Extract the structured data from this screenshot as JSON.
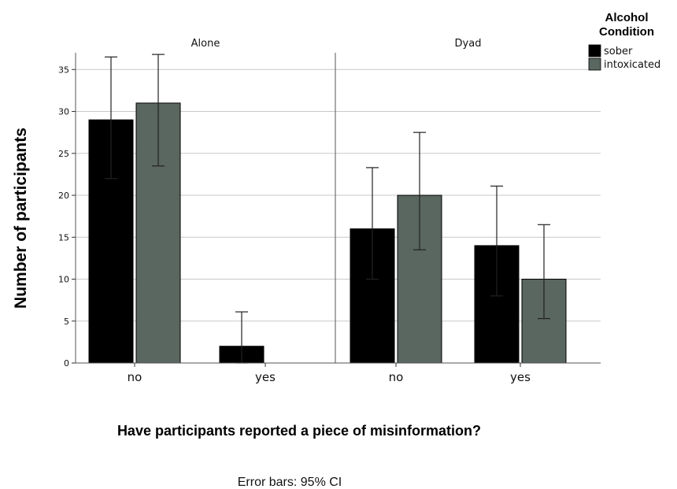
{
  "chart_data": {
    "type": "bar",
    "panels": [
      {
        "title": "Alone",
        "categories": [
          "no",
          "yes"
        ],
        "series": [
          {
            "name": "sober",
            "values": [
              29,
              2
            ],
            "ci": [
              [
                22,
                36.5
              ],
              [
                0,
                6.1
              ]
            ]
          },
          {
            "name": "intoxicated",
            "values": [
              31,
              0
            ],
            "ci": [
              [
                23.5,
                36.8
              ],
              null
            ]
          }
        ]
      },
      {
        "title": "Dyad",
        "categories": [
          "no",
          "yes"
        ],
        "series": [
          {
            "name": "sober",
            "values": [
              16,
              14
            ],
            "ci": [
              [
                10,
                23.3
              ],
              [
                8,
                21.1
              ]
            ]
          },
          {
            "name": "intoxicated",
            "values": [
              20,
              10
            ],
            "ci": [
              [
                13.5,
                27.5
              ],
              [
                5.3,
                16.5
              ]
            ]
          }
        ]
      }
    ],
    "ylabel": "Number of participants",
    "xlabel": "Have participants reported a piece of misinformation?",
    "note": "Error bars: 95% CI",
    "ylim": [
      0,
      37
    ],
    "yticks": [
      0,
      5,
      10,
      15,
      20,
      25,
      30,
      35
    ],
    "grid": true,
    "legend": {
      "title_lines": [
        "Alcohol",
        "Condition"
      ],
      "placement": "top-right",
      "entries": [
        {
          "name": "sober",
          "color": "#000000"
        },
        {
          "name": "intoxicated",
          "color": "#5a6660"
        }
      ]
    },
    "colors": {
      "sober": "#000000",
      "intoxicated": "#5a6660"
    }
  }
}
